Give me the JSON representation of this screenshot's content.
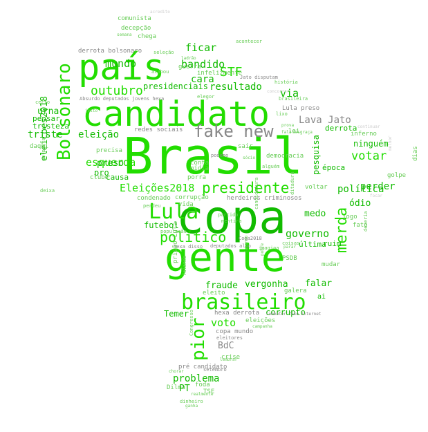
{
  "colors": {
    "bright_green": "#22dd00",
    "mid_green": "#11bb00",
    "light_green": "#66cc55",
    "gray": "#888888",
    "light_gray": "#aaaaaa",
    "pale": "#cccccc"
  },
  "words": [
    {
      "text": "Brasil",
      "tone": "bright_green"
    },
    {
      "text": "copa",
      "tone": "mid_green"
    },
    {
      "text": "gente",
      "tone": "bright_green"
    },
    {
      "text": "candidato",
      "tone": "bright_green"
    },
    {
      "text": "país",
      "tone": "bright_green"
    },
    {
      "text": "brasileiro",
      "tone": "bright_green"
    },
    {
      "text": "Bolsonaro",
      "tone": "bright_green"
    },
    {
      "text": "fake new",
      "tone": "gray"
    },
    {
      "text": "Lula",
      "tone": "bright_green"
    },
    {
      "text": "presidente",
      "tone": "bright_green"
    },
    {
      "text": "merda",
      "tone": "bright_green"
    },
    {
      "text": "pior",
      "tone": "bright_green"
    },
    {
      "text": "político",
      "tone": "bright_green"
    },
    {
      "text": "outubro",
      "tone": "bright_green"
    },
    {
      "text": "Eleições2018",
      "tone": "bright_green"
    },
    {
      "text": "votar",
      "tone": "bright_green"
    },
    {
      "text": "STF",
      "tone": "bright_green"
    },
    {
      "text": "mundo",
      "tone": "mid_green"
    },
    {
      "text": "ficar",
      "tone": "mid_green"
    },
    {
      "text": "bandido",
      "tone": "mid_green"
    },
    {
      "text": "cara",
      "tone": "mid_green"
    },
    {
      "text": "resultado",
      "tone": "mid_green"
    },
    {
      "text": "presidenciais",
      "tone": "mid_green"
    },
    {
      "text": "via",
      "tone": "mid_green"
    },
    {
      "text": "Lava Jato",
      "tone": "gray"
    },
    {
      "text": "urna",
      "tone": "mid_green"
    },
    {
      "text": "eleicoes2018",
      "tone": "mid_green"
    },
    {
      "text": "triste",
      "tone": "mid_green"
    },
    {
      "text": "eleição",
      "tone": "mid_green"
    },
    {
      "text": "pensar",
      "tone": "mid_green"
    },
    {
      "text": "tristeza",
      "tone": "mid_green"
    },
    {
      "text": "esquerda",
      "tone": "bright_green"
    },
    {
      "text": "preso",
      "tone": "mid_green"
    },
    {
      "text": "pro",
      "tone": "mid_green"
    },
    {
      "text": "causa",
      "tone": "mid_green"
    },
    {
      "text": "futebol",
      "tone": "mid_green"
    },
    {
      "text": "governo",
      "tone": "mid_green"
    },
    {
      "text": "medo",
      "tone": "mid_green"
    },
    {
      "text": "perder",
      "tone": "mid_green"
    },
    {
      "text": "ninguém",
      "tone": "mid_green"
    },
    {
      "text": "pesquisa",
      "tone": "mid_green"
    },
    {
      "text": "política",
      "tone": "mid_green"
    },
    {
      "text": "ódio",
      "tone": "mid_green"
    },
    {
      "text": "fraude",
      "tone": "mid_green"
    },
    {
      "text": "vergonha",
      "tone": "mid_green"
    },
    {
      "text": "falar",
      "tone": "mid_green"
    },
    {
      "text": "voto",
      "tone": "bright_green"
    },
    {
      "text": "corrupto",
      "tone": "mid_green"
    },
    {
      "text": "BdC",
      "tone": "gray"
    },
    {
      "text": "problema",
      "tone": "mid_green"
    },
    {
      "text": "PT",
      "tone": "mid_green"
    },
    {
      "text": "Temer",
      "tone": "mid_green"
    },
    {
      "text": "última",
      "tone": "mid_green"
    },
    {
      "text": "ruim",
      "tone": "mid_green"
    },
    {
      "text": "derrota",
      "tone": "mid_green"
    },
    {
      "text": "época",
      "tone": "mid_green"
    },
    {
      "text": "inferno",
      "tone": "light_green"
    },
    {
      "text": "golpe",
      "tone": "light_green"
    },
    {
      "text": "jogo",
      "tone": "light_green"
    },
    {
      "text": "fato",
      "tone": "light_green"
    },
    {
      "text": "dias",
      "tone": "light_green"
    },
    {
      "text": "ai",
      "tone": "mid_green"
    },
    {
      "text": "galera",
      "tone": "light_green"
    },
    {
      "text": "mudar",
      "tone": "light_green"
    },
    {
      "text": "PSDB",
      "tone": "light_green"
    },
    {
      "text": "eleito",
      "tone": "light_green"
    },
    {
      "text": "hexa derrota",
      "tone": "gray"
    },
    {
      "text": "eleições",
      "tone": "light_green"
    },
    {
      "text": "copa mundo",
      "tone": "gray"
    },
    {
      "text": "crise",
      "tone": "light_green"
    },
    {
      "text": "pré candidato",
      "tone": "gray"
    },
    {
      "text": "Dilma",
      "tone": "light_green"
    },
    {
      "text": "TSE",
      "tone": "light_green"
    },
    {
      "text": "foda",
      "tone": "light_green"
    },
    {
      "text": "comunista",
      "tone": "light_green"
    },
    {
      "text": "decepção",
      "tone": "light_green"
    },
    {
      "text": "chega",
      "tone": "light_green"
    },
    {
      "text": "derrota bolsonaro",
      "tone": "gray"
    },
    {
      "text": "guerra",
      "tone": "light_green"
    },
    {
      "text": "infelizmente",
      "tone": "light_green"
    },
    {
      "text": "redes sociais",
      "tone": "gray"
    },
    {
      "text": "Lula preso",
      "tone": "gray"
    },
    {
      "text": "lei",
      "tone": "light_green"
    },
    {
      "text": "sair",
      "tone": "light_green"
    },
    {
      "text": "democracia",
      "tone": "light_green"
    },
    {
      "text": "conta",
      "tone": "light_green"
    },
    {
      "text": "mídia",
      "tone": "light_green"
    },
    {
      "text": "porra",
      "tone": "light_green"
    },
    {
      "text": "voltar",
      "tone": "light_green"
    },
    {
      "text": "herdeiros criminosos",
      "tone": "gray"
    },
    {
      "text": "condenado",
      "tone": "light_green"
    },
    {
      "text": "corrupção",
      "tone": "light_green"
    },
    {
      "text": "vida",
      "tone": "light_green"
    },
    {
      "text": "prisão Lula",
      "tone": "light_green"
    },
    {
      "text": "Jato disputam",
      "tone": "gray"
    },
    {
      "text": "história",
      "tone": "light_green"
    },
    {
      "text": "brasileira",
      "tone": "light_green"
    },
    {
      "text": "Absurdo deputados jovens hexa",
      "tone": "gray"
    },
    {
      "text": "Copa2018",
      "tone": "gray"
    },
    {
      "text": "hexa disso",
      "tone": "gray"
    },
    {
      "text": "deputados alvo",
      "tone": "gray"
    },
    {
      "text": "Congresso",
      "tone": "light_green"
    },
    {
      "text": "eleitores",
      "tone": "gray"
    },
    {
      "text": "setembro",
      "tone": "gray"
    },
    {
      "text": "dinheiro",
      "tone": "light_green"
    },
    {
      "text": "ganha",
      "tone": "light_green"
    },
    {
      "text": "realmente",
      "tone": "light_green"
    },
    {
      "text": "chorar",
      "tone": "light_green"
    },
    {
      "text": "lembrar",
      "tone": "light_green"
    },
    {
      "text": "clube",
      "tone": "light_green"
    },
    {
      "text": "precisa",
      "tone": "light_green"
    },
    {
      "text": "daqui",
      "tone": "light_green"
    },
    {
      "text": "certo",
      "tone": "light_green"
    },
    {
      "text": "golpista",
      "tone": "light_green"
    },
    {
      "text": "deixa",
      "tone": "light_green"
    },
    {
      "text": "lixo",
      "tone": "light_green"
    },
    {
      "text": "elegor",
      "tone": "light_green"
    },
    {
      "text": "acontecer",
      "tone": "light_green"
    },
    {
      "text": "candidatura",
      "tone": "light_green"
    },
    {
      "text": "população",
      "tone": "light_green"
    },
    {
      "text": "perdeu",
      "tone": "light_green"
    },
    {
      "text": "partido",
      "tone": "light_green"
    },
    {
      "text": "mentira",
      "tone": "light_green"
    },
    {
      "text": "alguém",
      "tone": "light_green"
    },
    {
      "text": "podemo",
      "tone": "gray"
    },
    {
      "text": "pobre",
      "tone": "light_green"
    },
    {
      "text": "fazendo",
      "tone": "light_green"
    },
    {
      "text": "ditadura",
      "tone": "light_green"
    },
    {
      "text": "imagina",
      "tone": "light_green"
    },
    {
      "text": "coisas",
      "tone": "light_green"
    },
    {
      "text": "parar",
      "tone": "light_green"
    },
    {
      "text": "deveria",
      "tone": "light_green"
    },
    {
      "text": "acabou",
      "tone": "light_green"
    },
    {
      "text": "seleção",
      "tone": "light_green"
    },
    {
      "text": "ladrão",
      "tone": "light_green"
    },
    {
      "text": "sócio",
      "tone": "light_green"
    },
    {
      "text": "falando",
      "tone": "light_green"
    },
    {
      "text": "combater fake internet",
      "tone": "gray"
    },
    {
      "text": "campanha",
      "tone": "light_green"
    },
    {
      "text": "prova",
      "tone": "light_green"
    },
    {
      "text": "fala",
      "tone": "light_green"
    },
    {
      "text": "desgraça",
      "tone": "light_green"
    },
    {
      "text": "jeito",
      "tone": "light_green"
    },
    {
      "text": "semana",
      "tone": "light_green"
    },
    {
      "text": "acredito",
      "tone": "pale"
    },
    {
      "text": "concorrer",
      "tone": "pale"
    },
    {
      "text": "continuar",
      "tone": "pale"
    },
    {
      "text": "melhor",
      "tone": "pale"
    },
    {
      "text": "focar",
      "tone": "pale"
    },
    {
      "text": "frente",
      "tone": "pale"
    }
  ]
}
